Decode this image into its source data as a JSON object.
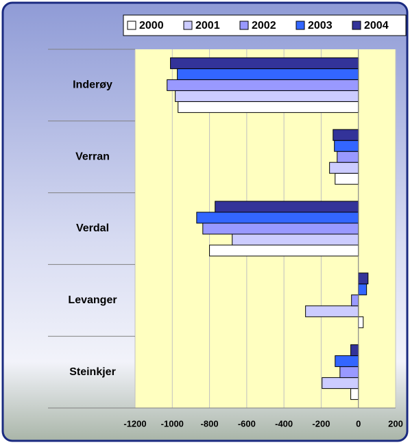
{
  "chart_data": {
    "type": "hbar",
    "categories": [
      "Inderøy",
      "Verran",
      "Verdal",
      "Levanger",
      "Steinkjer"
    ],
    "series": [
      {
        "name": "2000",
        "color": "#ffffff",
        "values": [
          -969,
          -125,
          -800,
          26,
          -41
        ]
      },
      {
        "name": "2001",
        "color": "#ccccff",
        "values": [
          -984,
          -155,
          -678,
          -284,
          -195
        ]
      },
      {
        "name": "2002",
        "color": "#9999ff",
        "values": [
          -1028,
          -114,
          -836,
          -37,
          -99
        ]
      },
      {
        "name": "2003",
        "color": "#3366ff",
        "values": [
          -973,
          -129,
          -869,
          44,
          -125
        ]
      },
      {
        "name": "2004",
        "color": "#333399",
        "values": [
          -1010,
          -136,
          -770,
          52,
          -41
        ]
      }
    ],
    "xlim": [
      -1200,
      200
    ],
    "xticks": [
      -1200,
      -1000,
      -800,
      -600,
      -400,
      -200,
      0,
      200
    ],
    "grid": true,
    "legend": "top-right"
  }
}
